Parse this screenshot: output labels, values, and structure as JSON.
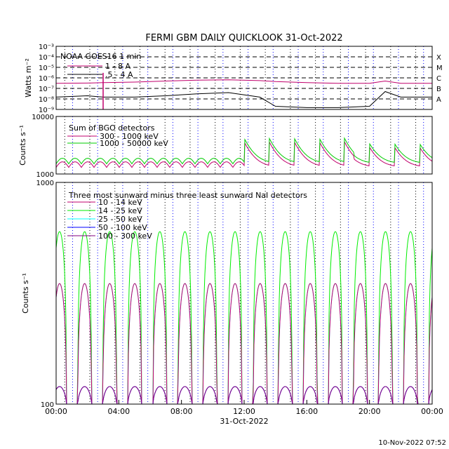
{
  "title": "FERMI GBM DAILY QUICKLOOK   31-Oct-2022",
  "footer_timestamp": "10-Nov-2022 07:52",
  "chart_data": [
    {
      "type": "line",
      "panel": "goes",
      "ylabel": "Watts m⁻²",
      "yscale": "log",
      "ylim": [
        1e-09,
        0.001
      ],
      "y_tick_labels": [
        "10⁻³",
        "10⁻⁴",
        "10⁻⁵",
        "10⁻⁶",
        "10⁻⁷",
        "10⁻⁸",
        "10⁻⁹"
      ],
      "flare_classes": [
        "X",
        "M",
        "C",
        "B",
        "A"
      ],
      "legend_title": "NOAA GOES16 1 min",
      "x_hours": [
        0,
        2,
        3,
        5,
        7,
        9,
        11,
        13,
        14,
        16,
        18,
        20,
        21,
        22,
        24
      ],
      "series": [
        {
          "name": "1 - 8 A",
          "color": "#c0006c",
          "values": [
            3e-07,
            3.2e-07,
            3.5e-07,
            4e-07,
            5e-07,
            6e-07,
            6.5e-07,
            5.5e-07,
            4.5e-07,
            3.5e-07,
            3e-07,
            3e-07,
            5e-07,
            3e-07,
            3e-07
          ]
        },
        {
          "name": ".5 - 4 A",
          "color": "#000000",
          "values": [
            1.5e-08,
            2e-08,
            1.5e-08,
            1.5e-08,
            2e-08,
            3e-08,
            4e-08,
            1.5e-08,
            2e-09,
            1.5e-09,
            1.5e-09,
            2e-09,
            5e-08,
            1.5e-08,
            1.5e-08
          ]
        }
      ]
    },
    {
      "type": "line",
      "panel": "bgo",
      "ylabel": "Counts s⁻¹",
      "yscale": "log",
      "ylim": [
        1000,
        10000
      ],
      "y_tick_labels": [
        "10000",
        "1000"
      ],
      "legend_title": "Sum of BGO detectors",
      "series": [
        {
          "name": "300 - 1000 keV",
          "color": "#c0006c",
          "base_level": 1300
        },
        {
          "name": "1000 - 50000 keV",
          "color": "#00cc00",
          "base_level": 1500
        }
      ]
    },
    {
      "type": "line",
      "panel": "nai",
      "ylabel": "Counts s⁻¹",
      "yscale": "log",
      "ylim": [
        100,
        1000
      ],
      "y_tick_labels": [
        "1000",
        "100"
      ],
      "legend_title": "Three most sunward minus three least sunward NaI detectors",
      "series": [
        {
          "name": "10 - 14 keV",
          "color": "#c0006c",
          "peak": 350
        },
        {
          "name": "14 - 25 keV",
          "color": "#00ee00",
          "peak": 600
        },
        {
          "name": "25 - 50 keV",
          "color": "#00ffff",
          "peak": 350
        },
        {
          "name": "50 - 100 keV",
          "color": "#0000ff",
          "peak": 120
        },
        {
          "name": "100 - 300 keV",
          "color": "#800080",
          "peak": 120
        }
      ]
    }
  ],
  "x_axis": {
    "label": "31-Oct-2022",
    "range_hours": [
      0,
      24
    ],
    "tick_labels": [
      "00:00",
      "04:00",
      "08:00",
      "12:00",
      "16:00",
      "20:00",
      "00:00"
    ]
  },
  "colors": {
    "saa_band": "#000000",
    "orbit_marker": "#0000ff"
  }
}
